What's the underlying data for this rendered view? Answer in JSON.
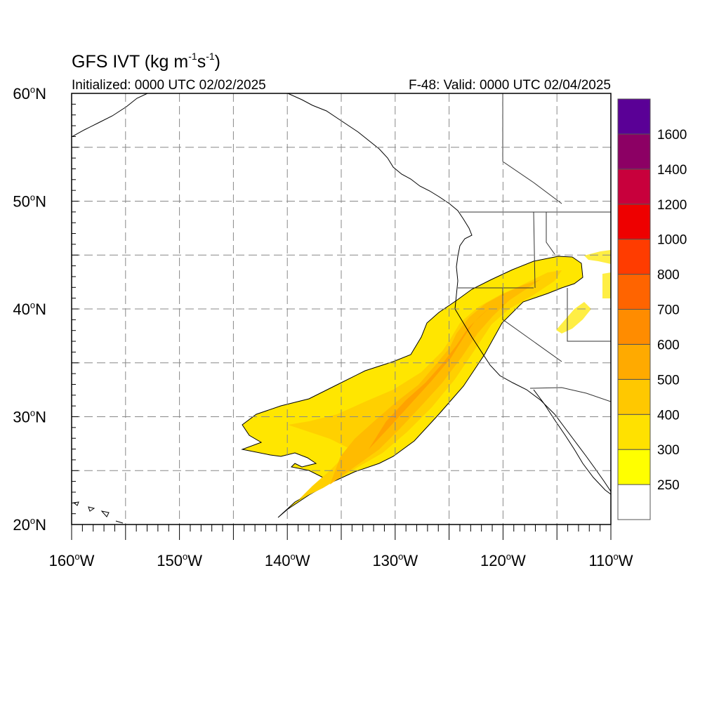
{
  "title": {
    "prefix": "GFS IVT (kg m",
    "exp1": "-1",
    "mid": "s",
    "exp2": "-1",
    "suffix": ")"
  },
  "initialized": "Initialized: 0000 UTC 02/02/2025",
  "valid": "F-48: Valid: 0000 UTC 02/04/2025",
  "degree_symbol": "o",
  "map": {
    "lon_range": [
      -160,
      -110
    ],
    "lat_range": [
      20,
      60
    ],
    "lon_ticks": [
      {
        "value": -160,
        "num": "160",
        "hemi": "W"
      },
      {
        "value": -150,
        "num": "150",
        "hemi": "W"
      },
      {
        "value": -140,
        "num": "140",
        "hemi": "W"
      },
      {
        "value": -130,
        "num": "130",
        "hemi": "W"
      },
      {
        "value": -120,
        "num": "120",
        "hemi": "W"
      },
      {
        "value": -110,
        "num": "110",
        "hemi": "W"
      }
    ],
    "lat_ticks": [
      {
        "value": 60,
        "num": "60",
        "hemi": "N"
      },
      {
        "value": 50,
        "num": "50",
        "hemi": "N"
      },
      {
        "value": 40,
        "num": "40",
        "hemi": "N"
      },
      {
        "value": 30,
        "num": "30",
        "hemi": "N"
      },
      {
        "value": 20,
        "num": "20",
        "hemi": "N"
      }
    ],
    "grid": "dashed every 5 degrees",
    "contour_line_color": "#000000",
    "coastline_color": "#000000",
    "border_color": "#555555"
  },
  "colorbar": {
    "levels": [
      "250",
      "300",
      "400",
      "500",
      "600",
      "700",
      "800",
      "1000",
      "1200",
      "1400",
      "1600"
    ],
    "colors": [
      "#ffffff",
      "#ffff00",
      "#ffe100",
      "#ffc800",
      "#ffaa00",
      "#ff8c00",
      "#ff6400",
      "#ff3c00",
      "#ee0000",
      "#c8003c",
      "#8c0064",
      "#5a0096"
    ]
  },
  "chart_data": {
    "type": "heatmap",
    "variable": "IVT",
    "units": "kg m-1 s-1",
    "plume_axis_lon_lat": [
      [
        -140.5,
        21
      ],
      [
        -136,
        25
      ],
      [
        -131,
        28.5
      ],
      [
        -127,
        32
      ],
      [
        -124,
        36
      ],
      [
        -121,
        40
      ],
      [
        -117,
        43
      ],
      [
        -112,
        44.5
      ]
    ],
    "max_category": "500",
    "color_levels": [
      250,
      300,
      400,
      500,
      600,
      700,
      800,
      1000,
      1200,
      1400,
      1600
    ]
  }
}
